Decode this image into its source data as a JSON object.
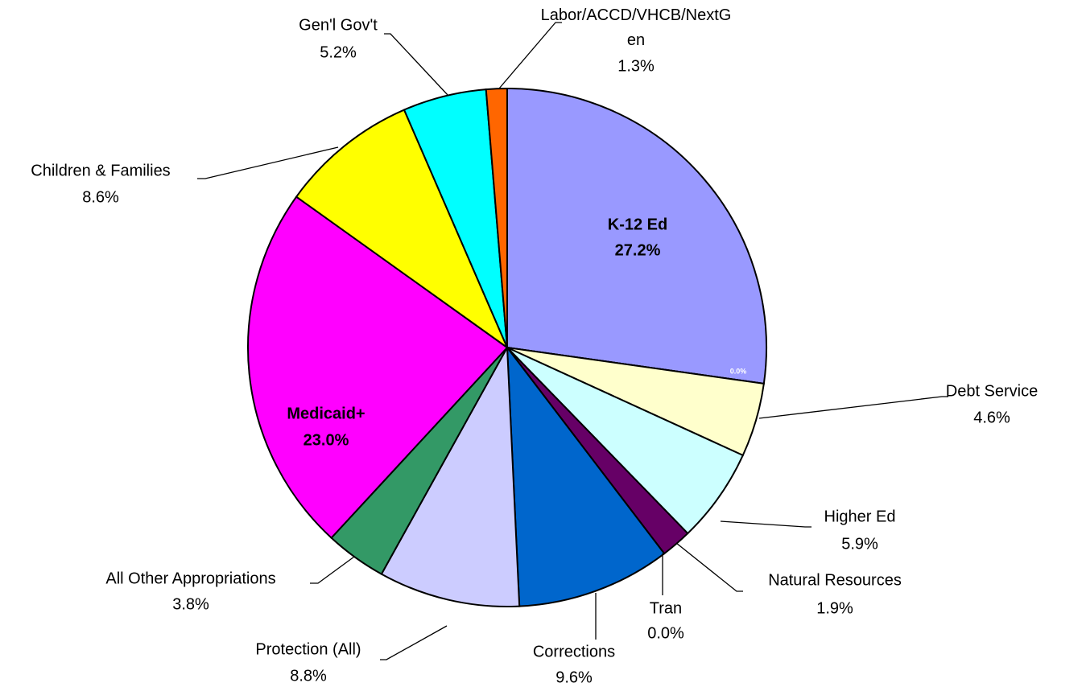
{
  "chart_data": {
    "type": "pie",
    "categories": [
      "K-12 Ed",
      null,
      "Debt  Service",
      "Higher Ed",
      "Natural  Resources",
      "Tran",
      "Corrections",
      "Protection (All)",
      "All Other Appropriations",
      "Medicaid+",
      "Children & Families",
      "Gen'l Gov't",
      "Labor/ACCD/VHCB/NextGen"
    ],
    "values": [
      27.2,
      0.0,
      4.6,
      5.9,
      1.9,
      0.0,
      9.6,
      8.8,
      3.8,
      23.0,
      8.6,
      5.2,
      1.3
    ],
    "value_labels": [
      "27.2%",
      "0.0%",
      "4.6%",
      "5.9%",
      "1.9%",
      "0.0%",
      "9.6%",
      "8.8%",
      "3.8%",
      "23.0%",
      "8.6%",
      "5.2%",
      "1.3%"
    ],
    "colors": [
      "#9999ff",
      "#ffffff",
      "#ffffcc",
      "#ccffff",
      "#660066",
      "#000080",
      "#0066cc",
      "#ccccff",
      "#339966",
      "#ff00ff",
      "#ffff00",
      "#00ffff",
      "#ff6600"
    ]
  }
}
